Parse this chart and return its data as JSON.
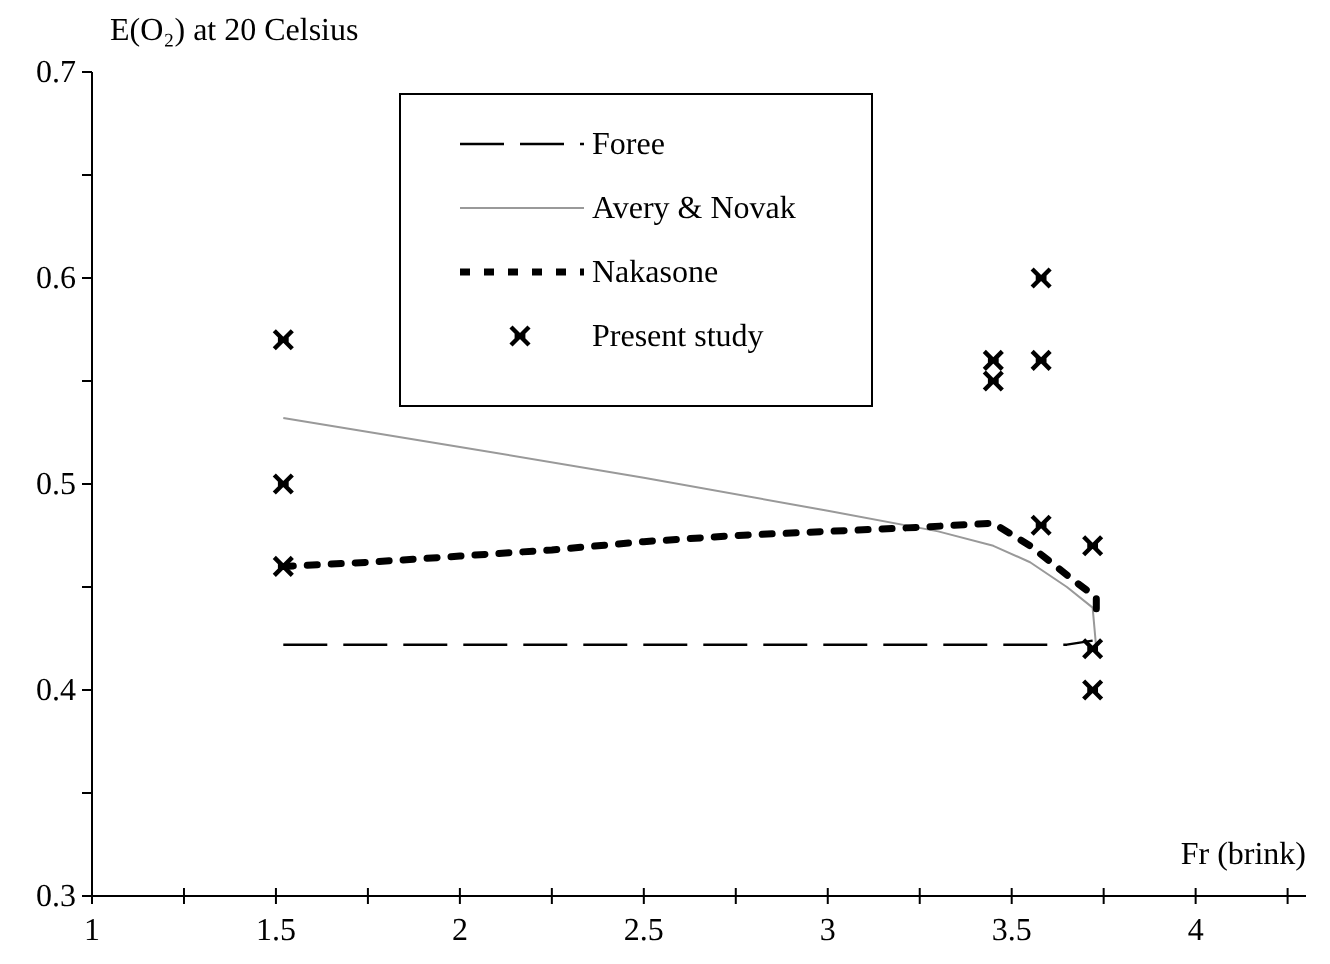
{
  "chart_data": {
    "type": "line",
    "xlabel": "Fr (brink)",
    "ylabel": "E(O₂) at 20 Celsius",
    "xlim": [
      1,
      4.3
    ],
    "ylim": [
      0.3,
      0.7
    ],
    "xticks": [
      1,
      {
        "value": 1.25,
        "label": null
      },
      1.5,
      {
        "value": 1.75,
        "label": null
      },
      2,
      {
        "value": 2.25,
        "label": null
      },
      2.5,
      {
        "value": 2.75,
        "label": null
      },
      3,
      {
        "value": 3.25,
        "label": null
      },
      3.5,
      {
        "value": 3.75,
        "label": null
      },
      4,
      {
        "value": 4.25,
        "label": null
      }
    ],
    "yticks": [
      0.3,
      {
        "value": 0.35,
        "label": null
      },
      0.4,
      {
        "value": 0.45,
        "label": null
      },
      0.5,
      {
        "value": 0.55,
        "label": null
      },
      0.6,
      {
        "value": 0.65,
        "label": null
      },
      0.7
    ],
    "grid": false,
    "legend": "top",
    "series": [
      {
        "name": "Foree",
        "line_style": "dashed",
        "color": "#000000",
        "x": [
          1.52,
          3.65,
          3.72
        ],
        "values": [
          0.422,
          0.422,
          0.424
        ]
      },
      {
        "name": "Avery & Novak",
        "line_style": "solid",
        "color": "#999999",
        "x": [
          1.52,
          2.0,
          2.5,
          3.0,
          3.3,
          3.45,
          3.55,
          3.65,
          3.72,
          3.73
        ],
        "values": [
          0.532,
          0.518,
          0.503,
          0.487,
          0.477,
          0.47,
          0.462,
          0.45,
          0.44,
          0.42
        ]
      },
      {
        "name": "Nakasone",
        "line_style": "dotted",
        "color": "#000000",
        "x": [
          1.52,
          1.75,
          2.0,
          2.25,
          2.5,
          2.75,
          3.0,
          3.25,
          3.45,
          3.55,
          3.67,
          3.73,
          3.73
        ],
        "values": [
          0.46,
          0.462,
          0.465,
          0.468,
          0.472,
          0.475,
          0.477,
          0.479,
          0.481,
          0.47,
          0.453,
          0.445,
          0.438
        ]
      },
      {
        "name": "Present study",
        "type": "scatter",
        "marker": "cross",
        "color": "#000000",
        "x": [
          1.52,
          1.52,
          1.52,
          3.45,
          3.45,
          3.58,
          3.58,
          3.58,
          3.72,
          3.72,
          3.72
        ],
        "values": [
          0.57,
          0.5,
          0.46,
          0.56,
          0.55,
          0.6,
          0.56,
          0.48,
          0.47,
          0.42,
          0.4
        ]
      }
    ]
  }
}
